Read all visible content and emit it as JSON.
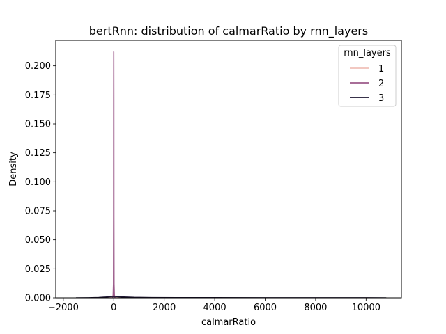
{
  "chart_data": {
    "type": "line",
    "title": "bertRnn: distribution of calmarRatio by rnn_layers",
    "xlabel": "calmarRatio",
    "ylabel": "Density",
    "xlim": [
      -2300,
      11400
    ],
    "ylim": [
      0,
      0.222
    ],
    "x_ticks": [
      -2000,
      0,
      2000,
      4000,
      6000,
      8000,
      10000
    ],
    "x_tick_labels": [
      "−2000",
      "0",
      "2000",
      "4000",
      "6000",
      "8000",
      "10000"
    ],
    "y_ticks": [
      0,
      0.025,
      0.05,
      0.075,
      0.1,
      0.125,
      0.15,
      0.175,
      0.2
    ],
    "y_tick_labels": [
      "0.000",
      "0.025",
      "0.050",
      "0.075",
      "0.100",
      "0.125",
      "0.150",
      "0.175",
      "0.200"
    ],
    "legend": {
      "title": "rnn_layers",
      "placement": "top-right"
    },
    "series": [
      {
        "name": "1",
        "color": "#f1c0b8",
        "x": [
          -500,
          -250,
          -100,
          -40,
          -15,
          0,
          15,
          40,
          100,
          250,
          500,
          1000,
          1500,
          2000,
          2500
        ],
        "values": [
          0,
          0.0002,
          0.0007,
          0.0016,
          0.0025,
          0.0032,
          0.0025,
          0.0016,
          0.0008,
          0.0003,
          0.0001,
          4e-05,
          2e-05,
          1e-05,
          0
        ]
      },
      {
        "name": "2",
        "color": "#9b5a8a",
        "x": [
          -60,
          -25,
          -12,
          -6,
          -3,
          0,
          3,
          6,
          12,
          25,
          60
        ],
        "values": [
          0,
          0.001,
          0.012,
          0.07,
          0.17,
          0.212,
          0.17,
          0.07,
          0.012,
          0.001,
          0
        ]
      },
      {
        "name": "3",
        "color": "#1c1530",
        "x": [
          -1500,
          -1000,
          -600,
          -300,
          -100,
          0,
          100,
          300,
          800,
          1500,
          2500,
          4000,
          6000,
          8000,
          10000,
          10800
        ],
        "values": [
          0,
          8e-05,
          0.0003,
          0.0007,
          0.0011,
          0.0012,
          0.0011,
          0.0008,
          0.0004,
          0.0002,
          0.00012,
          9e-05,
          7e-05,
          6e-05,
          4e-05,
          0
        ]
      }
    ]
  }
}
